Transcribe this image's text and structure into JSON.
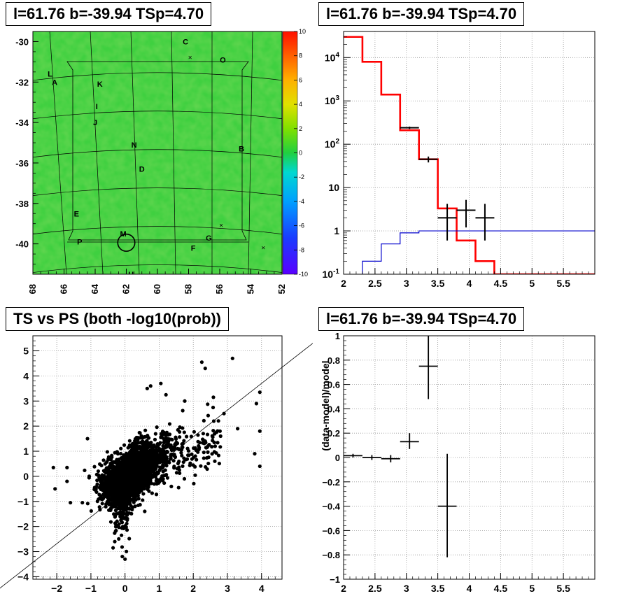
{
  "panels": {
    "skymap": {
      "title": "l=61.76 b=-39.94 TSp=4.70",
      "chart_data": {
        "type": "heatmap",
        "title": "l=61.76 b=-39.94 TSp=4.70",
        "xlim": [
          68,
          52
        ],
        "ylim": [
          -41.5,
          -29.5
        ],
        "x_ticks": [
          "68",
          "66",
          "64",
          "62",
          "60",
          "58",
          "56",
          "54",
          "52"
        ],
        "y_ticks": [
          "-30",
          "-32",
          "-34",
          "-36",
          "-38",
          "-40"
        ],
        "colorbar_ticks": [
          "10",
          "8",
          "6",
          "4",
          "2",
          "0",
          "-2",
          "-4",
          "-6",
          "-8",
          "-10"
        ],
        "colorbar_range": [
          -10,
          10
        ],
        "source_labels": [
          {
            "label": "C",
            "x": 58.2,
            "y": -30.0
          },
          {
            "label": "O",
            "x": 55.8,
            "y": -30.9
          },
          {
            "label": "L",
            "x": 66.9,
            "y": -31.6
          },
          {
            "label": "A",
            "x": 66.6,
            "y": -32.0
          },
          {
            "label": "K",
            "x": 63.7,
            "y": -32.1
          },
          {
            "label": "I",
            "x": 63.9,
            "y": -33.2
          },
          {
            "label": "J",
            "x": 64.0,
            "y": -34.0
          },
          {
            "label": "N",
            "x": 61.5,
            "y": -35.1
          },
          {
            "label": "B",
            "x": 54.6,
            "y": -35.3
          },
          {
            "label": "D",
            "x": 61.0,
            "y": -36.3
          },
          {
            "label": "E",
            "x": 65.2,
            "y": -38.5
          },
          {
            "label": "M",
            "x": 62.2,
            "y": -39.5
          },
          {
            "label": "G",
            "x": 56.7,
            "y": -39.7
          },
          {
            "label": "P",
            "x": 65.0,
            "y": -39.9
          },
          {
            "label": "F",
            "x": 57.7,
            "y": -40.2
          },
          {
            "label": "H",
            "x": 61.7,
            "y": -41.5
          }
        ],
        "crosses": [
          {
            "x": 57.9,
            "y": -30.8
          },
          {
            "x": 55.9,
            "y": -39.1
          },
          {
            "x": 53.2,
            "y": -40.2
          }
        ],
        "circle": {
          "x": 62.0,
          "y": -39.94,
          "radius_deg": 0.55
        }
      }
    },
    "spectrum": {
      "title": "l=61.76 b=-39.94 TSp=4.70",
      "chart_data": {
        "type": "line",
        "title": "l=61.76 b=-39.94 TSp=4.70",
        "xlim": [
          2,
          6
        ],
        "ylim": [
          0.1,
          40000
        ],
        "yscale": "log",
        "grid": true,
        "x_ticks": [
          "2",
          "2.5",
          "3",
          "3.5",
          "4",
          "4.5",
          "5",
          "5.5"
        ],
        "y_ticks": [
          "10^-1",
          "1",
          "10",
          "10^2",
          "10^3",
          "10^4"
        ],
        "series": [
          {
            "color": "#ff0000",
            "bin_edges": [
              2.0,
              2.3,
              2.6,
              2.9,
              3.2,
              3.5,
              3.8,
              4.1,
              4.4,
              6.0
            ],
            "values": [
              30000,
              8000,
              1400,
              210,
              45,
              3.3,
              0.6,
              0.2,
              0.1
            ]
          },
          {
            "color": "#0000cc",
            "bin_edges": [
              2.0,
              2.3,
              2.6,
              2.9,
              3.2,
              3.5,
              6.0
            ],
            "values": [
              0.02,
              0.2,
              0.5,
              0.9,
              1.0,
              1.0
            ]
          }
        ],
        "points": [
          {
            "x": 3.05,
            "y": 240,
            "xerr": 0.15,
            "ylo": 225,
            "yhi": 255
          },
          {
            "x": 3.35,
            "y": 45,
            "xerr": 0.15,
            "ylo": 38,
            "yhi": 52
          },
          {
            "x": 3.65,
            "y": 2,
            "xerr": 0.15,
            "ylo": 0.6,
            "yhi": 4.2
          },
          {
            "x": 3.95,
            "y": 3,
            "xerr": 0.15,
            "ylo": 1.2,
            "yhi": 5.2
          },
          {
            "x": 4.25,
            "y": 2,
            "xerr": 0.15,
            "ylo": 0.6,
            "yhi": 4.2
          }
        ]
      }
    },
    "scatter": {
      "title": "TS vs PS (both -log10(prob))",
      "chart_data": {
        "type": "scatter",
        "title": "TS vs PS (both -log10(prob))",
        "xlim": [
          -2.7,
          4.6
        ],
        "ylim": [
          -4.1,
          5.6
        ],
        "grid": true,
        "x_ticks": [
          "−2",
          "−1",
          "0",
          "1",
          "2",
          "3",
          "4"
        ],
        "y_ticks": [
          "−4",
          "−3",
          "−2",
          "−1",
          "0",
          "1",
          "2",
          "3",
          "4",
          "5"
        ],
        "reference_line": {
          "x1": -3.8,
          "y1": -4.6,
          "x2": 5.5,
          "y2": 5.3
        },
        "outliers": [
          [
            3.15,
            4.7
          ],
          [
            2.25,
            4.55
          ],
          [
            2.35,
            4.3
          ],
          [
            3.95,
            3.35
          ],
          [
            3.85,
            2.9
          ],
          [
            3.95,
            1.8
          ],
          [
            2.9,
            2.5
          ],
          [
            3.3,
            1.9
          ],
          [
            2.6,
            2.2
          ],
          [
            1.05,
            3.7
          ],
          [
            0.75,
            3.6
          ],
          [
            0.65,
            3.5
          ],
          [
            1.2,
            3.25
          ],
          [
            1.75,
            3.0
          ],
          [
            3.95,
            0.4
          ],
          [
            3.8,
            0.9
          ],
          [
            -1.1,
            1.5
          ],
          [
            -2.1,
            0.35
          ],
          [
            -1.7,
            0.35
          ],
          [
            -1.7,
            -0.2
          ],
          [
            -1.6,
            -1.05
          ],
          [
            -2.05,
            -0.5
          ],
          [
            -1.25,
            -1.05
          ],
          [
            0.0,
            -3.3
          ],
          [
            -0.3,
            -2.6
          ],
          [
            -0.35,
            -2.85
          ],
          [
            2.8,
            1.6
          ],
          [
            1.55,
            1.85
          ]
        ]
      }
    },
    "residual": {
      "title": "l=61.76 b=-39.94 TSp=4.70",
      "chart_data": {
        "type": "scatter",
        "title": "l=61.76 b=-39.94 TSp=4.70",
        "ylabel": "(data-model)/model",
        "xlim": [
          2,
          6
        ],
        "ylim": [
          -1,
          1
        ],
        "grid": true,
        "x_ticks": [
          "2",
          "2.5",
          "3",
          "3.5",
          "4",
          "4.5",
          "5",
          "5.5"
        ],
        "y_ticks": [
          "−1",
          "−0.8",
          "−0.6",
          "−0.4",
          "−0.2",
          "0",
          "0.2",
          "0.4",
          "0.6",
          "0.8",
          "1"
        ],
        "points": [
          {
            "x": 2.15,
            "y": 0.015,
            "xerr": 0.15,
            "ylo": 0.0,
            "yhi": 0.03
          },
          {
            "x": 2.45,
            "y": 0.0,
            "xerr": 0.15,
            "ylo": -0.02,
            "yhi": 0.02
          },
          {
            "x": 2.75,
            "y": -0.01,
            "xerr": 0.15,
            "ylo": -0.04,
            "yhi": 0.02
          },
          {
            "x": 3.05,
            "y": 0.13,
            "xerr": 0.15,
            "ylo": 0.07,
            "yhi": 0.2
          },
          {
            "x": 3.35,
            "y": 0.75,
            "xerr": 0.15,
            "ylo": 0.48,
            "yhi": 1.0
          },
          {
            "x": 3.65,
            "y": -0.4,
            "xerr": 0.15,
            "ylo": -0.82,
            "yhi": 0.03
          }
        ]
      }
    }
  }
}
